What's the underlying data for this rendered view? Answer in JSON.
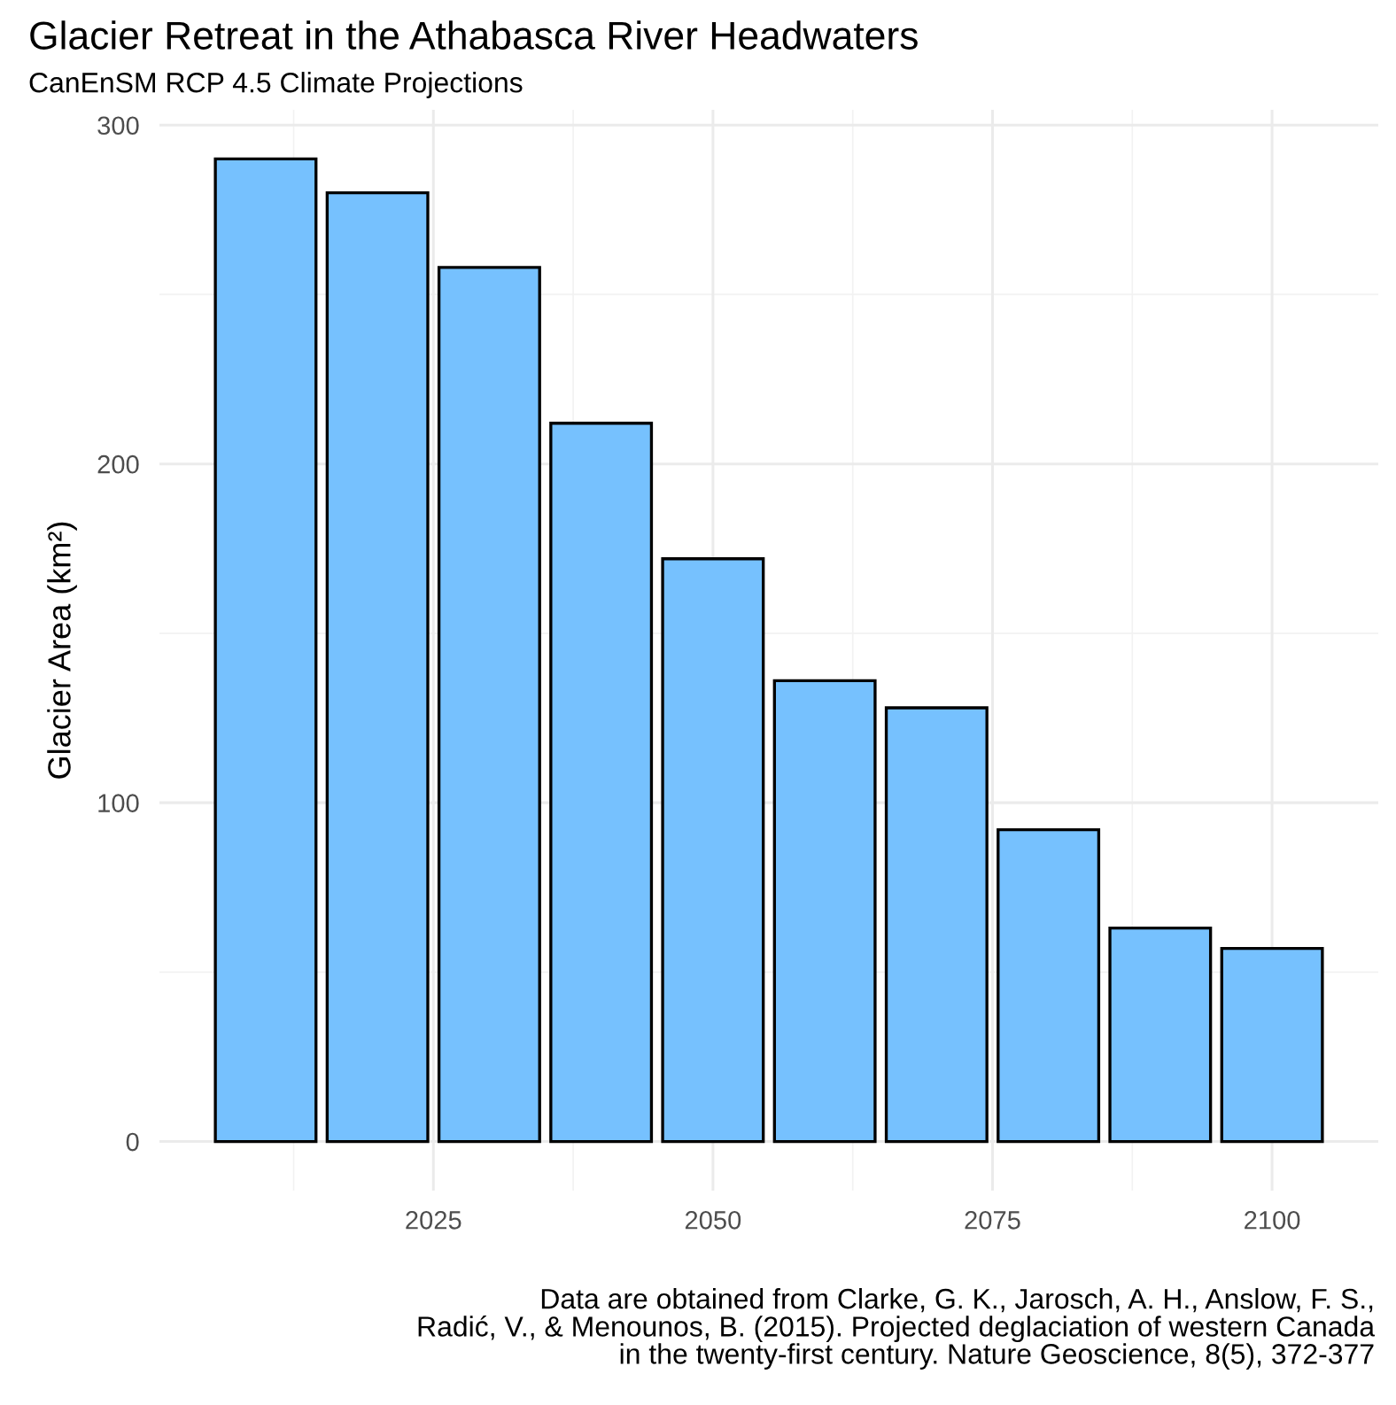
{
  "chart_data": {
    "type": "bar",
    "title": "Glacier Retreat in the Athabasca River Headwaters",
    "subtitle": "CanEnSM RCP 4.5 Climate Projections",
    "ylabel": "Glacier Area (km²)",
    "x": [
      2010,
      2020,
      2030,
      2040,
      2050,
      2060,
      2070,
      2080,
      2090,
      2100
    ],
    "values": [
      290,
      280,
      258,
      212,
      172,
      136,
      128,
      92,
      63,
      57
    ],
    "color": "#76c1fe",
    "xlim": [
      2000.5,
      2109.5
    ],
    "xticks": [
      2025,
      2050,
      2075,
      2100
    ],
    "ylim": [
      -14.5,
      304.5
    ],
    "yticks": [
      0,
      100,
      200,
      300
    ],
    "grid": true,
    "annotations": [
      "Data are obtained from Clarke, G. K., Jarosch, A. H., Anslow, F. S.,\nRadić, V., & Menounos, B. (2015). Projected deglaciation of western Canada\nin the twenty-first century. Nature Geoscience, 8(5), 372-377"
    ]
  }
}
